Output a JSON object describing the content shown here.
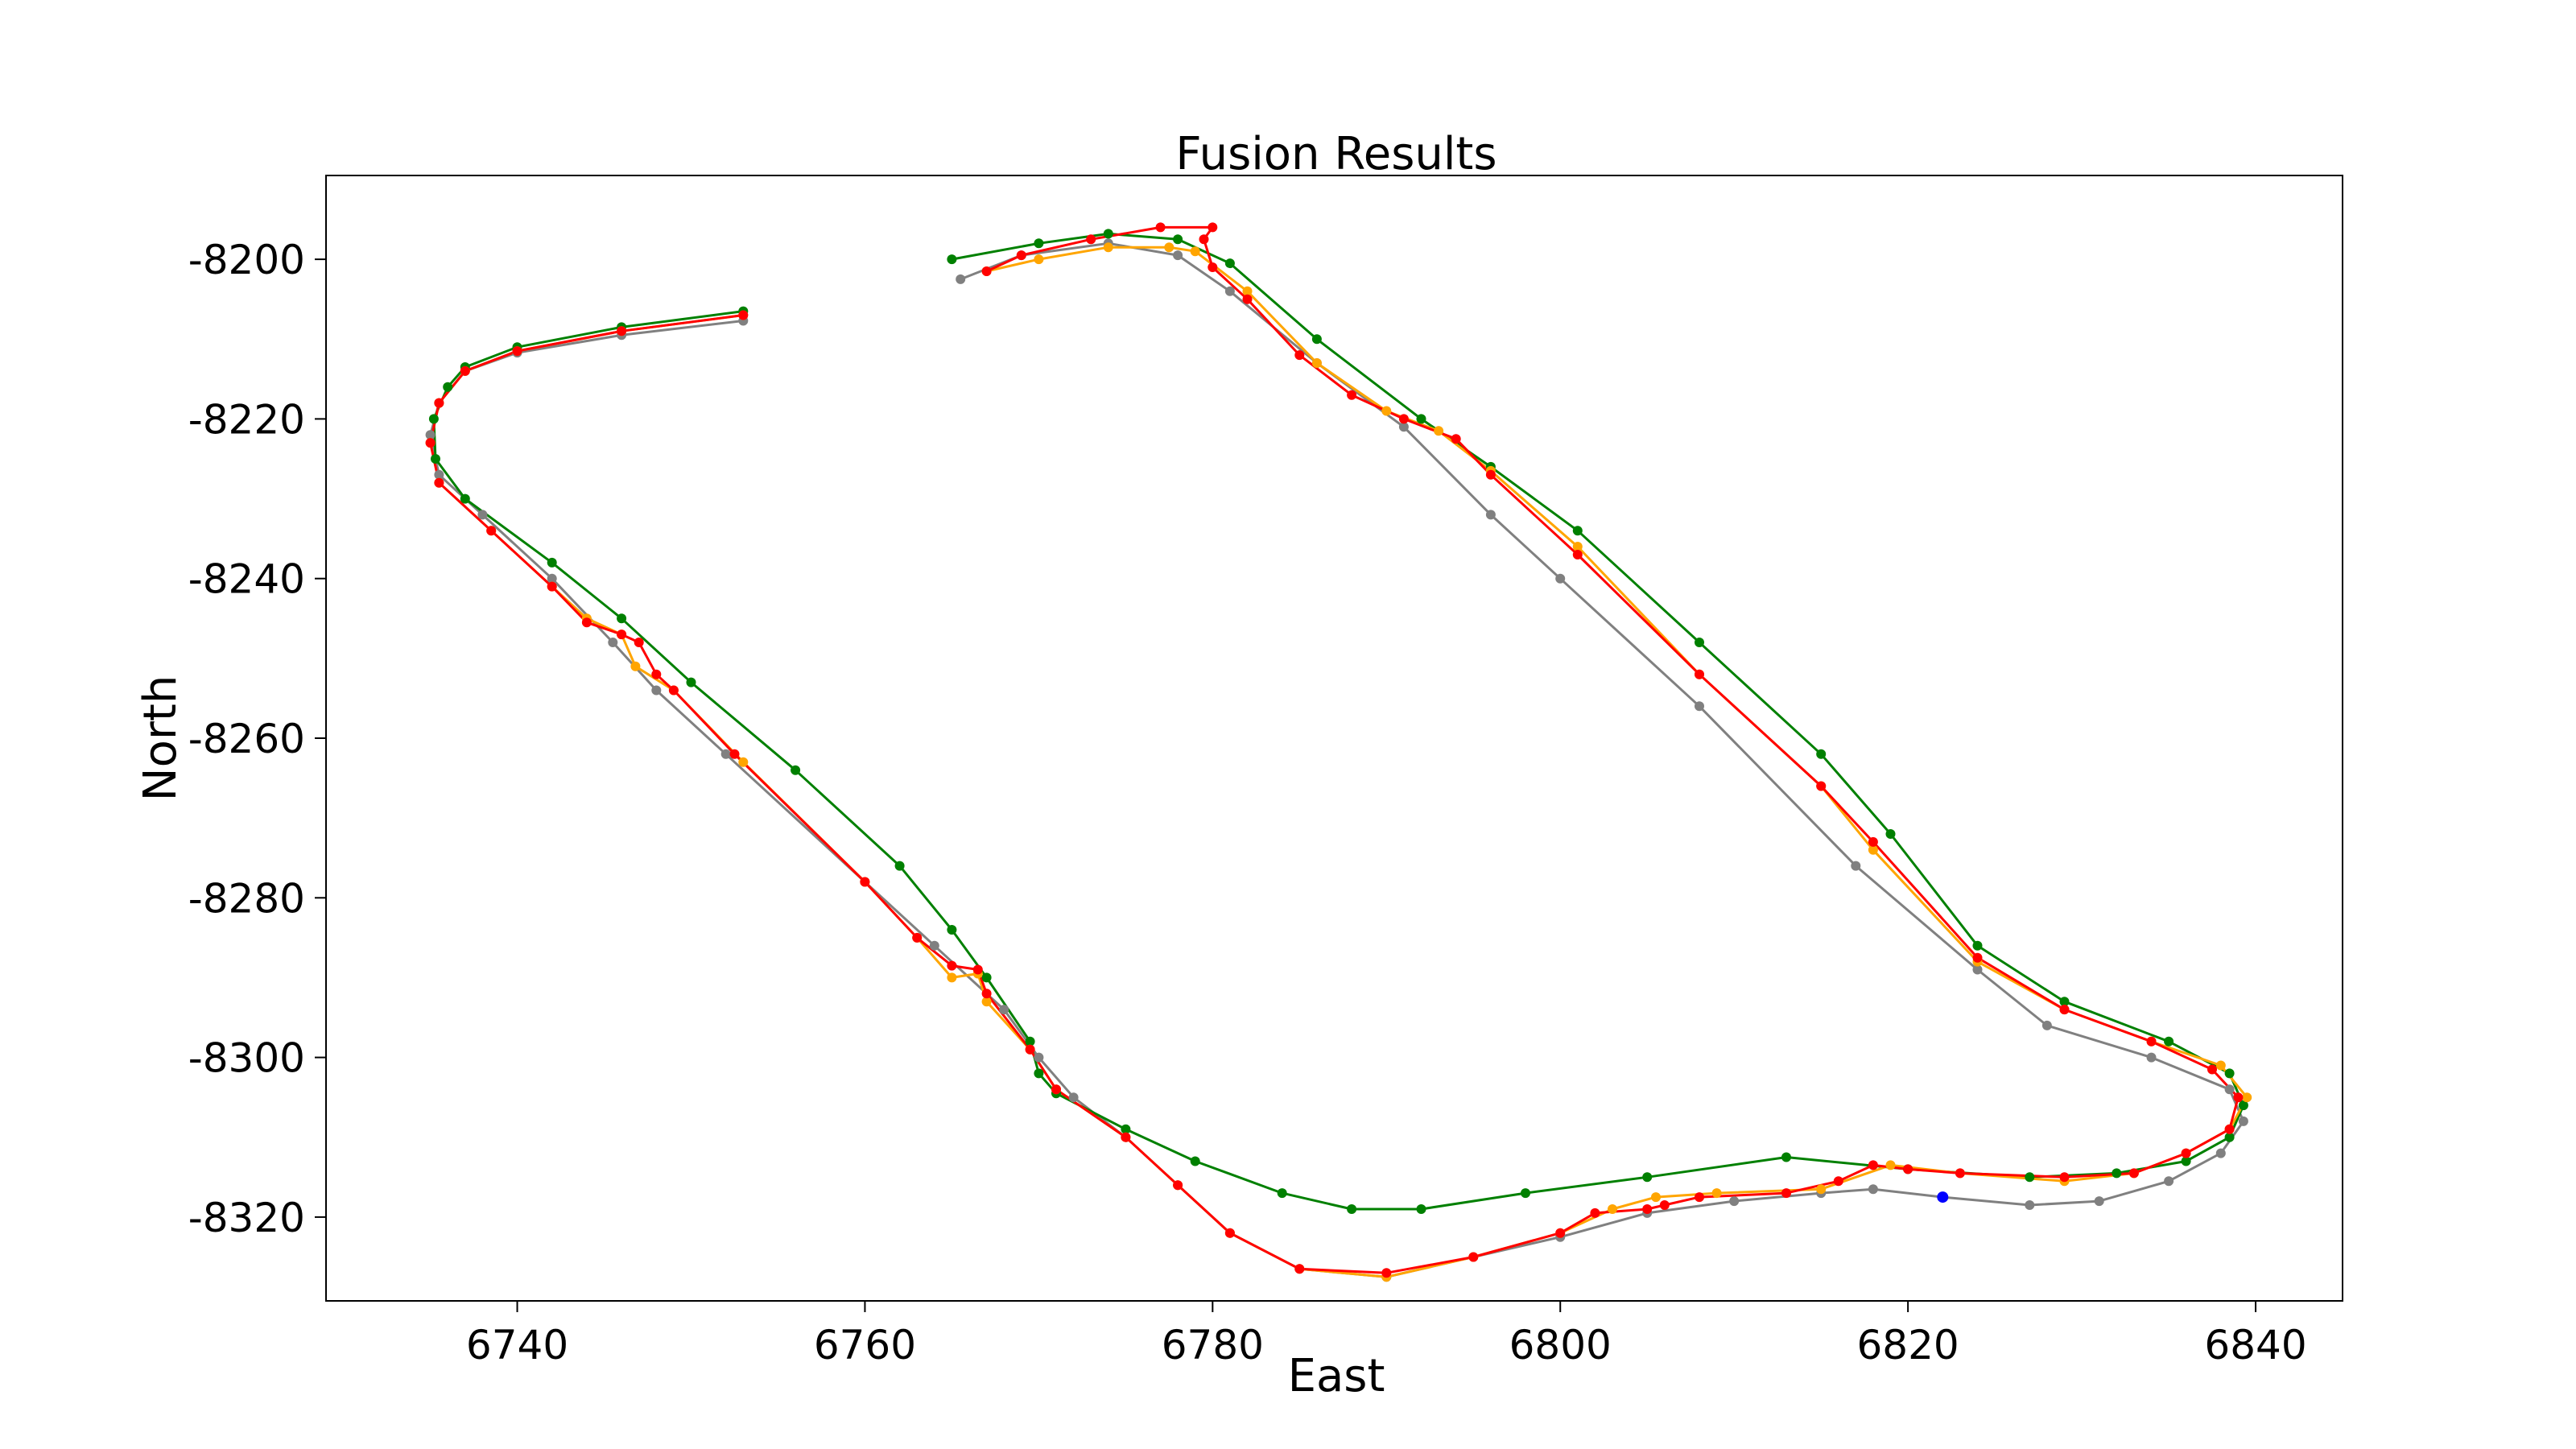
{
  "chart_data": {
    "type": "line",
    "title": "Fusion Results",
    "xlabel": "East",
    "ylabel": "North",
    "xlim": [
      6729,
      6845
    ],
    "ylim": [
      -8330.5,
      -8189.5
    ],
    "xticks": [
      6740,
      6760,
      6780,
      6800,
      6820,
      6840
    ],
    "yticks": [
      -8200,
      -8220,
      -8240,
      -8260,
      -8280,
      -8300,
      -8320
    ],
    "xtick_labels": [
      "6740",
      "6760",
      "6780",
      "6800",
      "6820",
      "6840"
    ],
    "ytick_labels": [
      "-8200",
      "-8220",
      "-8240",
      "-8260",
      "-8280",
      "-8300",
      "-8320"
    ],
    "grid": false,
    "legend": "none",
    "series": [
      {
        "color": "#808080",
        "points": [
          [
            6753.0,
            -8207.7
          ],
          [
            6746.0,
            -8209.5
          ],
          [
            6740.0,
            -8211.7
          ],
          [
            6737.0,
            -8214.0
          ],
          [
            6735.5,
            -8218.0
          ],
          [
            6735.0,
            -8222.0
          ],
          [
            6735.5,
            -8227.0
          ],
          [
            6738.0,
            -8232.0
          ],
          [
            6742.0,
            -8240.0
          ],
          [
            6745.5,
            -8248.0
          ],
          [
            6748.0,
            -8254.0
          ],
          [
            6752.0,
            -8262.0
          ],
          [
            6760.0,
            -8278.0
          ],
          [
            6764.0,
            -8286.0
          ],
          [
            6768.0,
            -8294.0
          ],
          [
            6770.0,
            -8300.0
          ],
          [
            6772.0,
            -8305.0
          ],
          [
            6775.0,
            -8310.0
          ],
          [
            6778.0,
            -8316.0
          ],
          [
            6781.0,
            -8322.0
          ],
          [
            6785.0,
            -8326.5
          ],
          [
            6790.0,
            -8327.5
          ],
          [
            6795.0,
            -8325.0
          ],
          [
            6800.0,
            -8322.5
          ],
          [
            6805.0,
            -8319.5
          ],
          [
            6810.0,
            -8318.0
          ],
          [
            6815.0,
            -8317.0
          ],
          [
            6818.0,
            -8316.5
          ],
          [
            6822.0,
            -8317.5
          ],
          [
            6827.0,
            -8318.5
          ],
          [
            6831.0,
            -8318.0
          ],
          [
            6835.0,
            -8315.5
          ],
          [
            6838.0,
            -8312.0
          ],
          [
            6839.3,
            -8308.0
          ],
          [
            6838.5,
            -8304.0
          ],
          [
            6834.0,
            -8300.0
          ],
          [
            6828.0,
            -8296.0
          ],
          [
            6824.0,
            -8289.0
          ],
          [
            6817.0,
            -8276.0
          ],
          [
            6808.0,
            -8256.0
          ],
          [
            6800.0,
            -8240.0
          ],
          [
            6796.0,
            -8232.0
          ],
          [
            6791.0,
            -8221.0
          ],
          [
            6786.0,
            -8213.0
          ],
          [
            6781.0,
            -8204.0
          ],
          [
            6778.0,
            -8199.5
          ],
          [
            6774.0,
            -8198.0
          ],
          [
            6769.0,
            -8199.5
          ],
          [
            6765.5,
            -8202.5
          ]
        ]
      },
      {
        "color": "#008000",
        "points": [
          [
            6753.0,
            -8206.5
          ],
          [
            6746.0,
            -8208.5
          ],
          [
            6740.0,
            -8211.0
          ],
          [
            6737.0,
            -8213.5
          ],
          [
            6736.0,
            -8216.0
          ],
          [
            6735.2,
            -8220.0
          ],
          [
            6735.3,
            -8225.0
          ],
          [
            6737.0,
            -8230.0
          ],
          [
            6742.0,
            -8238.0
          ],
          [
            6746.0,
            -8245.0
          ],
          [
            6750.0,
            -8253.0
          ],
          [
            6756.0,
            -8264.0
          ],
          [
            6762.0,
            -8276.0
          ],
          [
            6765.0,
            -8284.0
          ],
          [
            6767.0,
            -8290.0
          ],
          [
            6769.5,
            -8298.0
          ],
          [
            6770.0,
            -8302.0
          ],
          [
            6771.0,
            -8304.5
          ],
          [
            6775.0,
            -8309.0
          ],
          [
            6779.0,
            -8313.0
          ],
          [
            6784.0,
            -8317.0
          ],
          [
            6788.0,
            -8319.0
          ],
          [
            6792.0,
            -8319.0
          ],
          [
            6798.0,
            -8317.0
          ],
          [
            6805.0,
            -8315.0
          ],
          [
            6813.0,
            -8312.5
          ],
          [
            6820.0,
            -8314.0
          ],
          [
            6827.0,
            -8315.0
          ],
          [
            6832.0,
            -8314.5
          ],
          [
            6836.0,
            -8313.0
          ],
          [
            6838.5,
            -8310.0
          ],
          [
            6839.3,
            -8306.0
          ],
          [
            6838.5,
            -8302.0
          ],
          [
            6835.0,
            -8298.0
          ],
          [
            6829.0,
            -8293.0
          ],
          [
            6824.0,
            -8286.0
          ],
          [
            6819.0,
            -8272.0
          ],
          [
            6815.0,
            -8262.0
          ],
          [
            6808.0,
            -8248.0
          ],
          [
            6801.0,
            -8234.0
          ],
          [
            6796.0,
            -8226.0
          ],
          [
            6792.0,
            -8220.0
          ],
          [
            6786.0,
            -8210.0
          ],
          [
            6781.0,
            -8200.5
          ],
          [
            6778.0,
            -8197.5
          ],
          [
            6774.0,
            -8196.8
          ],
          [
            6770.0,
            -8198.0
          ],
          [
            6765.0,
            -8200.0
          ]
        ]
      },
      {
        "color": "#FFA500",
        "points": [
          [
            6753.0,
            -8207.0
          ],
          [
            6746.0,
            -8209.0
          ],
          [
            6740.0,
            -8211.5
          ],
          [
            6737.0,
            -8214.0
          ],
          [
            6735.5,
            -8218.0
          ],
          [
            6735.0,
            -8223.0
          ],
          [
            6735.5,
            -8228.0
          ],
          [
            6738.5,
            -8234.0
          ],
          [
            6742.0,
            -8241.0
          ],
          [
            6744.0,
            -8245.0
          ],
          [
            6746.0,
            -8247.0
          ],
          [
            6746.8,
            -8251.0
          ],
          [
            6749.0,
            -8254.0
          ],
          [
            6753.0,
            -8263.0
          ],
          [
            6760.0,
            -8278.0
          ],
          [
            6763.0,
            -8285.0
          ],
          [
            6765.0,
            -8290.0
          ],
          [
            6766.5,
            -8289.5
          ],
          [
            6767.0,
            -8293.0
          ],
          [
            6769.5,
            -8299.0
          ],
          [
            6771.0,
            -8304.0
          ],
          [
            6775.0,
            -8310.0
          ],
          [
            6778.0,
            -8316.0
          ],
          [
            6781.0,
            -8322.0
          ],
          [
            6785.0,
            -8326.5
          ],
          [
            6790.0,
            -8327.5
          ],
          [
            6795.0,
            -8325.0
          ],
          [
            6800.0,
            -8322.0
          ],
          [
            6803.0,
            -8319.0
          ],
          [
            6805.5,
            -8317.5
          ],
          [
            6809.0,
            -8317.0
          ],
          [
            6815.0,
            -8316.5
          ],
          [
            6819.0,
            -8313.5
          ],
          [
            6823.0,
            -8314.5
          ],
          [
            6829.0,
            -8315.5
          ],
          [
            6833.0,
            -8314.5
          ],
          [
            6836.0,
            -8312.0
          ],
          [
            6838.5,
            -8309.0
          ],
          [
            6839.5,
            -8305.0
          ],
          [
            6838.0,
            -8301.0
          ],
          [
            6834.0,
            -8298.0
          ],
          [
            6829.0,
            -8294.0
          ],
          [
            6824.0,
            -8288.0
          ],
          [
            6818.0,
            -8274.0
          ],
          [
            6815.0,
            -8266.0
          ],
          [
            6808.0,
            -8252.0
          ],
          [
            6801.0,
            -8236.0
          ],
          [
            6796.0,
            -8226.5
          ],
          [
            6793.0,
            -8221.5
          ],
          [
            6790.0,
            -8219.0
          ],
          [
            6786.0,
            -8213.0
          ],
          [
            6782.0,
            -8204.0
          ],
          [
            6779.0,
            -8199.0
          ],
          [
            6777.5,
            -8198.5
          ],
          [
            6774.0,
            -8198.5
          ],
          [
            6770.0,
            -8200.0
          ],
          [
            6767.0,
            -8201.5
          ]
        ]
      },
      {
        "color": "#FF0000",
        "points": [
          [
            6753.0,
            -8207.0
          ],
          [
            6746.0,
            -8209.0
          ],
          [
            6740.0,
            -8211.5
          ],
          [
            6737.0,
            -8214.0
          ],
          [
            6735.5,
            -8218.0
          ],
          [
            6735.0,
            -8223.0
          ],
          [
            6735.5,
            -8228.0
          ],
          [
            6738.5,
            -8234.0
          ],
          [
            6742.0,
            -8241.0
          ],
          [
            6744.0,
            -8245.5
          ],
          [
            6746.0,
            -8247.0
          ],
          [
            6747.0,
            -8248.0
          ],
          [
            6748.0,
            -8252.0
          ],
          [
            6749.0,
            -8254.0
          ],
          [
            6752.5,
            -8262.0
          ],
          [
            6760.0,
            -8278.0
          ],
          [
            6763.0,
            -8285.0
          ],
          [
            6765.0,
            -8288.5
          ],
          [
            6766.5,
            -8289.0
          ],
          [
            6767.0,
            -8292.0
          ],
          [
            6769.5,
            -8299.0
          ],
          [
            6771.0,
            -8304.0
          ],
          [
            6775.0,
            -8310.0
          ],
          [
            6778.0,
            -8316.0
          ],
          [
            6781.0,
            -8322.0
          ],
          [
            6785.0,
            -8326.5
          ],
          [
            6790.0,
            -8327.0
          ],
          [
            6795.0,
            -8325.0
          ],
          [
            6800.0,
            -8322.0
          ],
          [
            6802.0,
            -8319.5
          ],
          [
            6805.0,
            -8319.0
          ],
          [
            6806.0,
            -8318.5
          ],
          [
            6808.0,
            -8317.5
          ],
          [
            6813.0,
            -8317.0
          ],
          [
            6816.0,
            -8315.5
          ],
          [
            6818.0,
            -8313.5
          ],
          [
            6820.0,
            -8314.0
          ],
          [
            6823.0,
            -8314.5
          ],
          [
            6829.0,
            -8315.0
          ],
          [
            6833.0,
            -8314.5
          ],
          [
            6836.0,
            -8312.0
          ],
          [
            6838.5,
            -8309.0
          ],
          [
            6839.0,
            -8305.0
          ],
          [
            6837.5,
            -8301.5
          ],
          [
            6834.0,
            -8298.0
          ],
          [
            6829.0,
            -8294.0
          ],
          [
            6824.0,
            -8287.5
          ],
          [
            6818.0,
            -8273.0
          ],
          [
            6815.0,
            -8266.0
          ],
          [
            6808.0,
            -8252.0
          ],
          [
            6801.0,
            -8237.0
          ],
          [
            6796.0,
            -8227.0
          ],
          [
            6794.0,
            -8222.5
          ],
          [
            6791.0,
            -8220.0
          ],
          [
            6788.0,
            -8217.0
          ],
          [
            6785.0,
            -8212.0
          ],
          [
            6782.0,
            -8205.0
          ],
          [
            6780.0,
            -8201.0
          ],
          [
            6779.5,
            -8197.5
          ],
          [
            6780.0,
            -8196.0
          ],
          [
            6777.0,
            -8196.0
          ],
          [
            6773.0,
            -8197.5
          ],
          [
            6769.0,
            -8199.5
          ],
          [
            6767.0,
            -8201.5
          ]
        ]
      },
      {
        "color": "#0000FF",
        "points": [
          [
            6822.0,
            -8317.5
          ]
        ]
      }
    ]
  }
}
